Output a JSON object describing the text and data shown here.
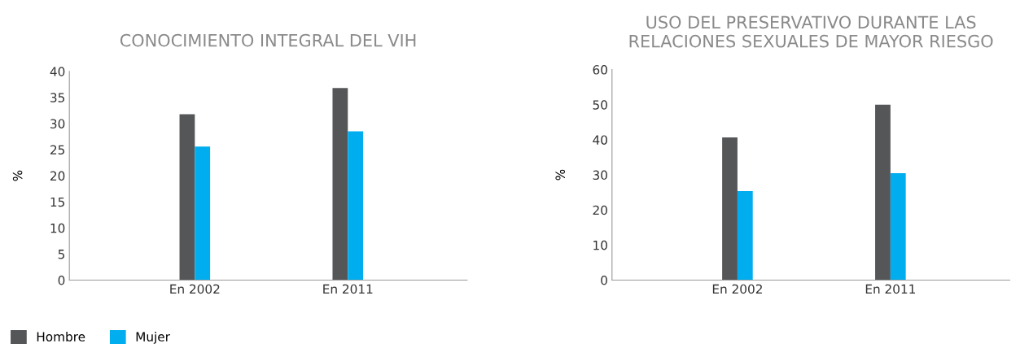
{
  "chart_data": [
    {
      "type": "bar",
      "title": "CONOCIMIENTO INTEGRAL DEL VIH",
      "ylabel": "%",
      "categories": [
        "En 2002",
        "En 2011"
      ],
      "series": [
        {
          "name": "Hombre",
          "color": "#555658",
          "values": [
            31.8,
            36.8
          ]
        },
        {
          "name": "Mujer",
          "color": "#00aeef",
          "values": [
            25.6,
            28.5
          ]
        }
      ],
      "ylim": [
        0,
        40
      ],
      "yticks": [
        0,
        5,
        10,
        15,
        20,
        25,
        30,
        35,
        40
      ],
      "grid": false,
      "legend": "bottom left"
    },
    {
      "type": "bar",
      "title": "USO DEL PRESERVATIVO DURANTE LAS RELACIONES SEXUALES DE MAYOR RIESGO",
      "ylabel": "%",
      "categories": [
        "En 2002",
        "En 2011"
      ],
      "series": [
        {
          "color": "#555658",
          "values": [
            40.7,
            50.0
          ]
        },
        {
          "color": "#00aeef",
          "values": [
            25.4,
            30.5
          ]
        }
      ],
      "ylim": [
        0,
        60
      ],
      "yticks": [
        0,
        10,
        20,
        30,
        40,
        50,
        60
      ],
      "grid": false
    }
  ]
}
